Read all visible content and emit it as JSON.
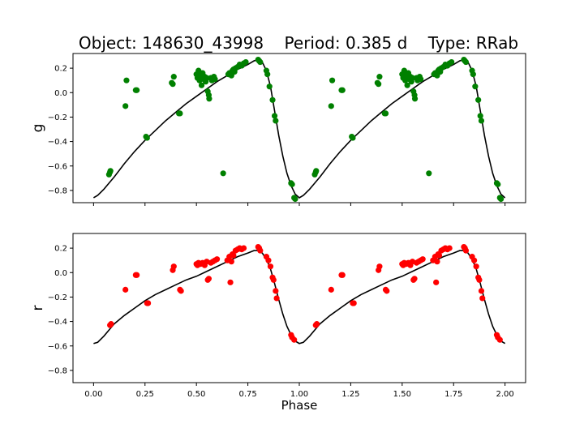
{
  "title": "Object: 148630_43998    Period: 0.385 d    Type: RRab",
  "colors": {
    "g_points": "#008000",
    "r_points": "#ff0000",
    "model": "#000000",
    "axes": "#000000"
  },
  "chart_data": [
    {
      "type": "scatter",
      "panel": "top",
      "title": "Object: 148630_43998    Period: 0.385 d    Type: RRab",
      "xlabel": "",
      "ylabel": "g",
      "xlim": [
        -0.1,
        2.1
      ],
      "ylim": [
        -0.9,
        0.32
      ],
      "xticks": [
        0.0,
        0.25,
        0.5,
        0.75,
        1.0,
        1.25,
        1.5,
        1.75,
        2.0
      ],
      "xtick_labels_shown": false,
      "yticks": [
        0.2,
        0.0,
        -0.2,
        -0.4,
        -0.6,
        -0.8
      ],
      "ytick_labels": [
        "0.2",
        "0.0",
        "−0.2",
        "−0.4",
        "−0.6",
        "−0.8"
      ],
      "grid": false,
      "legend": "none",
      "series": [
        {
          "kind": "points",
          "color": "#008000",
          "phase_period": 1.0,
          "points": [
            [
              0.075,
              -0.67
            ],
            [
              0.08,
              -0.65
            ],
            [
              0.082,
              -0.64
            ],
            [
              0.155,
              -0.11
            ],
            [
              0.16,
              0.1
            ],
            [
              0.205,
              0.02
            ],
            [
              0.21,
              0.02
            ],
            [
              0.255,
              -0.36
            ],
            [
              0.26,
              -0.37
            ],
            [
              0.38,
              0.08
            ],
            [
              0.385,
              0.07
            ],
            [
              0.39,
              0.13
            ],
            [
              0.415,
              -0.17
            ],
            [
              0.42,
              -0.17
            ],
            [
              0.5,
              0.15
            ],
            [
              0.505,
              0.12
            ],
            [
              0.51,
              0.18
            ],
            [
              0.515,
              0.1
            ],
            [
              0.52,
              0.14
            ],
            [
              0.525,
              0.06
            ],
            [
              0.53,
              0.16
            ],
            [
              0.535,
              0.11
            ],
            [
              0.54,
              0.13
            ],
            [
              0.545,
              0.09
            ],
            [
              0.55,
              0.12
            ],
            [
              0.555,
              0.01
            ],
            [
              0.56,
              -0.02
            ],
            [
              0.562,
              -0.05
            ],
            [
              0.57,
              0.12
            ],
            [
              0.575,
              0.1
            ],
            [
              0.585,
              0.13
            ],
            [
              0.59,
              0.11
            ],
            [
              0.63,
              -0.66
            ],
            [
              0.655,
              0.15
            ],
            [
              0.66,
              0.16
            ],
            [
              0.67,
              0.14
            ],
            [
              0.675,
              0.18
            ],
            [
              0.68,
              0.19
            ],
            [
              0.685,
              0.17
            ],
            [
              0.69,
              0.2
            ],
            [
              0.7,
              0.21
            ],
            [
              0.71,
              0.23
            ],
            [
              0.72,
              0.22
            ],
            [
              0.73,
              0.24
            ],
            [
              0.74,
              0.25
            ],
            [
              0.8,
              0.27
            ],
            [
              0.805,
              0.26
            ],
            [
              0.81,
              0.25
            ],
            [
              0.84,
              0.18
            ],
            [
              0.845,
              0.15
            ],
            [
              0.855,
              0.05
            ],
            [
              0.87,
              -0.06
            ],
            [
              0.88,
              -0.19
            ],
            [
              0.885,
              -0.23
            ],
            [
              0.96,
              -0.74
            ],
            [
              0.965,
              -0.75
            ],
            [
              0.975,
              -0.86
            ],
            [
              0.98,
              -0.87
            ]
          ]
        },
        {
          "kind": "model",
          "color": "#000000",
          "curve": [
            [
              0.0,
              -0.86
            ],
            [
              0.02,
              -0.84
            ],
            [
              0.05,
              -0.79
            ],
            [
              0.08,
              -0.73
            ],
            [
              0.1,
              -0.69
            ],
            [
              0.15,
              -0.58
            ],
            [
              0.2,
              -0.48
            ],
            [
              0.25,
              -0.39
            ],
            [
              0.3,
              -0.31
            ],
            [
              0.35,
              -0.23
            ],
            [
              0.4,
              -0.16
            ],
            [
              0.45,
              -0.09
            ],
            [
              0.5,
              -0.03
            ],
            [
              0.55,
              0.03
            ],
            [
              0.6,
              0.09
            ],
            [
              0.65,
              0.14
            ],
            [
              0.7,
              0.19
            ],
            [
              0.75,
              0.23
            ],
            [
              0.78,
              0.26
            ],
            [
              0.8,
              0.27
            ],
            [
              0.82,
              0.25
            ],
            [
              0.84,
              0.18
            ],
            [
              0.86,
              0.05
            ],
            [
              0.88,
              -0.15
            ],
            [
              0.9,
              -0.35
            ],
            [
              0.92,
              -0.52
            ],
            [
              0.94,
              -0.66
            ],
            [
              0.96,
              -0.76
            ],
            [
              0.98,
              -0.83
            ],
            [
              1.0,
              -0.86
            ]
          ]
        }
      ]
    },
    {
      "type": "scatter",
      "panel": "bottom",
      "xlabel": "Phase",
      "ylabel": "r",
      "xlim": [
        -0.1,
        2.1
      ],
      "ylim": [
        -0.9,
        0.32
      ],
      "xticks": [
        0.0,
        0.25,
        0.5,
        0.75,
        1.0,
        1.25,
        1.5,
        1.75,
        2.0
      ],
      "xtick_labels": [
        "0.00",
        "0.25",
        "0.50",
        "0.75",
        "1.00",
        "1.25",
        "1.50",
        "1.75",
        "2.00"
      ],
      "yticks": [
        0.2,
        0.0,
        -0.2,
        -0.4,
        -0.6,
        -0.8
      ],
      "ytick_labels": [
        "0.2",
        "0.0",
        "−0.2",
        "−0.4",
        "−0.6",
        "−0.8"
      ],
      "grid": false,
      "legend": "none",
      "series": [
        {
          "kind": "points",
          "color": "#ff0000",
          "phase_period": 1.0,
          "points": [
            [
              0.08,
              -0.43
            ],
            [
              0.085,
              -0.42
            ],
            [
              0.155,
              -0.14
            ],
            [
              0.205,
              -0.02
            ],
            [
              0.21,
              -0.02
            ],
            [
              0.26,
              -0.25
            ],
            [
              0.265,
              -0.25
            ],
            [
              0.385,
              0.02
            ],
            [
              0.39,
              0.05
            ],
            [
              0.42,
              -0.14
            ],
            [
              0.425,
              -0.15
            ],
            [
              0.5,
              0.07
            ],
            [
              0.505,
              0.06
            ],
            [
              0.51,
              0.08
            ],
            [
              0.52,
              0.07
            ],
            [
              0.53,
              0.08
            ],
            [
              0.54,
              0.06
            ],
            [
              0.55,
              0.09
            ],
            [
              0.555,
              -0.06
            ],
            [
              0.56,
              -0.05
            ],
            [
              0.57,
              0.08
            ],
            [
              0.58,
              0.09
            ],
            [
              0.59,
              0.1
            ],
            [
              0.6,
              0.11
            ],
            [
              0.65,
              0.1
            ],
            [
              0.66,
              0.13
            ],
            [
              0.665,
              -0.08
            ],
            [
              0.67,
              0.09
            ],
            [
              0.675,
              0.15
            ],
            [
              0.68,
              0.14
            ],
            [
              0.69,
              0.18
            ],
            [
              0.7,
              0.19
            ],
            [
              0.71,
              0.2
            ],
            [
              0.72,
              0.19
            ],
            [
              0.73,
              0.2
            ],
            [
              0.8,
              0.21
            ],
            [
              0.805,
              0.2
            ],
            [
              0.81,
              0.18
            ],
            [
              0.84,
              0.13
            ],
            [
              0.85,
              0.1
            ],
            [
              0.86,
              0.05
            ],
            [
              0.87,
              -0.04
            ],
            [
              0.875,
              -0.06
            ],
            [
              0.885,
              -0.15
            ],
            [
              0.89,
              -0.21
            ],
            [
              0.96,
              -0.51
            ],
            [
              0.965,
              -0.53
            ],
            [
              0.975,
              -0.55
            ]
          ]
        },
        {
          "kind": "model",
          "color": "#000000",
          "curve": [
            [
              0.0,
              -0.58
            ],
            [
              0.02,
              -0.57
            ],
            [
              0.05,
              -0.52
            ],
            [
              0.08,
              -0.46
            ],
            [
              0.1,
              -0.42
            ],
            [
              0.15,
              -0.35
            ],
            [
              0.2,
              -0.29
            ],
            [
              0.25,
              -0.23
            ],
            [
              0.3,
              -0.18
            ],
            [
              0.35,
              -0.14
            ],
            [
              0.4,
              -0.1
            ],
            [
              0.45,
              -0.06
            ],
            [
              0.5,
              -0.03
            ],
            [
              0.55,
              0.01
            ],
            [
              0.6,
              0.05
            ],
            [
              0.65,
              0.09
            ],
            [
              0.7,
              0.13
            ],
            [
              0.75,
              0.16
            ],
            [
              0.78,
              0.18
            ],
            [
              0.8,
              0.18
            ],
            [
              0.82,
              0.16
            ],
            [
              0.84,
              0.11
            ],
            [
              0.86,
              0.03
            ],
            [
              0.88,
              -0.09
            ],
            [
              0.9,
              -0.22
            ],
            [
              0.92,
              -0.34
            ],
            [
              0.94,
              -0.44
            ],
            [
              0.96,
              -0.51
            ],
            [
              0.98,
              -0.56
            ],
            [
              1.0,
              -0.58
            ]
          ]
        }
      ]
    }
  ]
}
